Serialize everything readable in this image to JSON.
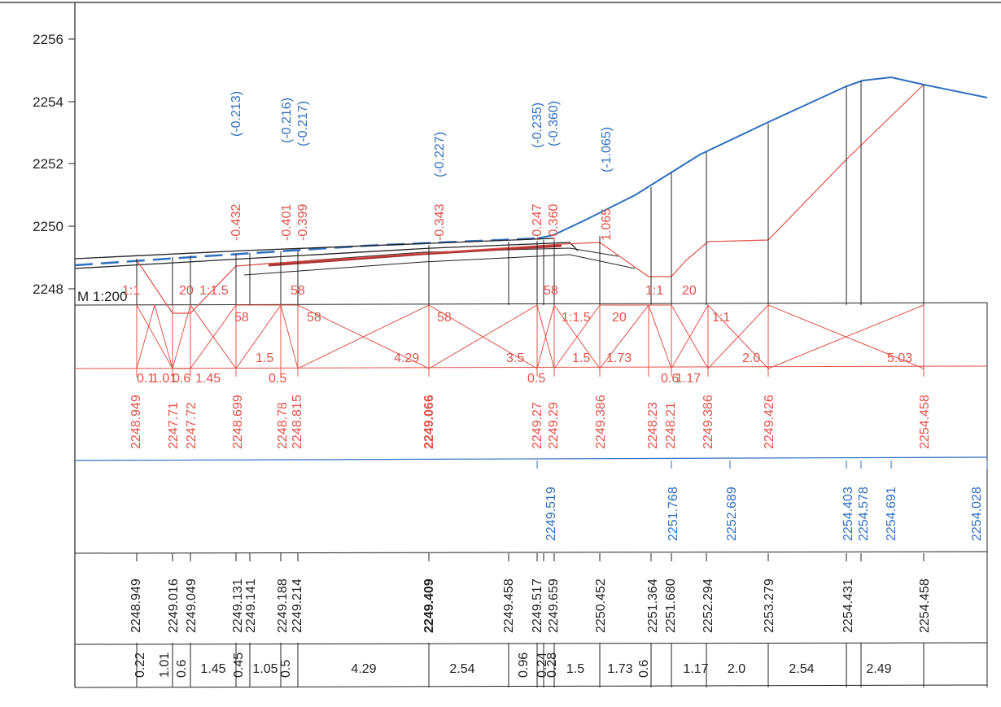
{
  "colors": {
    "red": "#e0524a",
    "blue": "#2f6fc0",
    "black": "#222222"
  },
  "scale_label": "M 1:200",
  "y_axis": {
    "ticks": [
      "2256",
      "2254",
      "2252",
      "2250",
      "2248"
    ]
  },
  "top_annotations": {
    "blue": [
      "(-0.213)",
      "(-0.216)",
      "(-0.217)",
      "(-0.227)",
      "(-0.235)",
      "(-0.360)",
      "(-1.065)"
    ],
    "red": [
      "-0.432",
      "-0.401",
      "-0.399",
      "-0.343",
      "-0.247",
      "-0.360",
      "1.065"
    ]
  },
  "slope_labels": [
    "1:1",
    "20",
    "1:1.5",
    "58",
    "58",
    "58",
    "58",
    "58",
    "1:1.5",
    "20",
    "1:1",
    "20",
    "1:1"
  ],
  "width_labels_red": [
    "0.1",
    "1.01",
    "0.6",
    "1.45",
    "0.5",
    "1.5",
    "4.29",
    "3.5",
    "0.5",
    "1.5",
    "1.73",
    "0.6",
    "1.17",
    "2.0",
    "5.03"
  ],
  "design_elevations": [
    "2248.949",
    "2247.71",
    "2247.72",
    "2248.699",
    "2248.78",
    "2248.815",
    "2249.066",
    "2249.27",
    "2249.29",
    "2249.386",
    "2248.23",
    "2248.21",
    "2249.386",
    "2249.426",
    "2254.458"
  ],
  "ground_elevations": [
    "2249.519",
    "2251.768",
    "2252.689",
    "2254.403",
    "2254.578",
    "2254.691",
    "2254.028"
  ],
  "existing_elevations": [
    "2248.949",
    "2249.016",
    "2249.049",
    "2249.131",
    "2249.141",
    "2249.188",
    "2249.214",
    "2249.409",
    "2249.458",
    "2249.517",
    "2249.659",
    "2250.452",
    "2251.364",
    "2251.680",
    "2252.294",
    "2253.279",
    "2254.431",
    "2254.458"
  ],
  "distances": [
    "0.22",
    "1.01",
    "0.6",
    "1.45",
    "0.45",
    "1.05",
    "0.5",
    "4.29",
    "2.54",
    "0.96",
    "0.24",
    "0.28",
    "1.5",
    "1.73",
    "0.6",
    "1.17",
    "2.0",
    "2.54",
    "2.49"
  ]
}
